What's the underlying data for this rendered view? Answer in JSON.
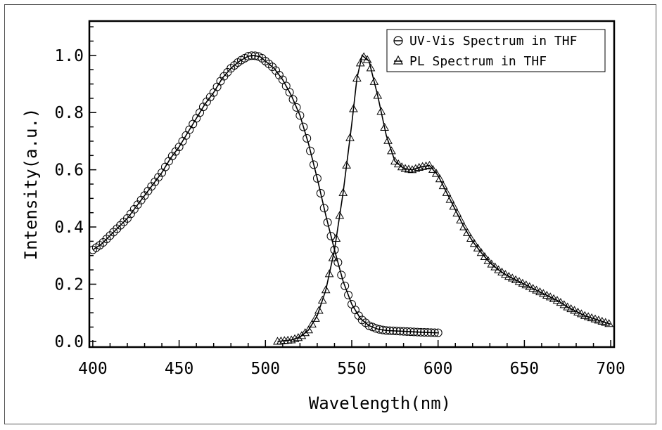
{
  "chart_data": {
    "type": "scatter",
    "xlabel": "Wavelength(nm)",
    "ylabel": "Intensity(a.u.)",
    "xlim": [
      398,
      702
    ],
    "ylim": [
      -0.02,
      1.12
    ],
    "x_ticks": [
      400,
      450,
      500,
      550,
      600,
      650,
      700
    ],
    "x_tick_labels": [
      "400",
      "450",
      "500",
      "550",
      "600",
      "650",
      "700"
    ],
    "y_ticks": [
      0.0,
      0.2,
      0.4,
      0.6,
      0.8,
      1.0
    ],
    "y_tick_labels": [
      "0.0",
      "0.2",
      "0.4",
      "0.6",
      "0.8",
      "1.0"
    ],
    "grid": false,
    "legend_position": "top-right",
    "series": [
      {
        "name": "UV-Vis Spectrum in THF",
        "marker": "circle",
        "color": "#000000",
        "points": [
          [
            400,
            0.32
          ],
          [
            405,
            0.34
          ],
          [
            410,
            0.37
          ],
          [
            415,
            0.4
          ],
          [
            420,
            0.43
          ],
          [
            425,
            0.47
          ],
          [
            430,
            0.51
          ],
          [
            435,
            0.55
          ],
          [
            440,
            0.59
          ],
          [
            445,
            0.64
          ],
          [
            450,
            0.68
          ],
          [
            455,
            0.73
          ],
          [
            460,
            0.78
          ],
          [
            465,
            0.83
          ],
          [
            470,
            0.87
          ],
          [
            475,
            0.92
          ],
          [
            480,
            0.955
          ],
          [
            485,
            0.98
          ],
          [
            490,
            0.997
          ],
          [
            493,
            1.0
          ],
          [
            497,
            0.995
          ],
          [
            500,
            0.98
          ],
          [
            505,
            0.955
          ],
          [
            510,
            0.915
          ],
          [
            515,
            0.86
          ],
          [
            520,
            0.79
          ],
          [
            525,
            0.69
          ],
          [
            530,
            0.57
          ],
          [
            535,
            0.44
          ],
          [
            540,
            0.32
          ],
          [
            545,
            0.21
          ],
          [
            550,
            0.13
          ],
          [
            555,
            0.08
          ],
          [
            560,
            0.055
          ],
          [
            565,
            0.043
          ],
          [
            570,
            0.038
          ],
          [
            580,
            0.035
          ],
          [
            590,
            0.032
          ],
          [
            600,
            0.03
          ]
        ]
      },
      {
        "name": "PL Spectrum in THF",
        "marker": "triangle",
        "color": "#000000",
        "points": [
          [
            507,
            0.0
          ],
          [
            515,
            0.005
          ],
          [
            520,
            0.015
          ],
          [
            525,
            0.04
          ],
          [
            530,
            0.09
          ],
          [
            535,
            0.18
          ],
          [
            540,
            0.32
          ],
          [
            545,
            0.52
          ],
          [
            550,
            0.76
          ],
          [
            553,
            0.92
          ],
          [
            556,
            1.0
          ],
          [
            560,
            0.98
          ],
          [
            565,
            0.86
          ],
          [
            570,
            0.72
          ],
          [
            575,
            0.63
          ],
          [
            580,
            0.605
          ],
          [
            585,
            0.6
          ],
          [
            590,
            0.61
          ],
          [
            595,
            0.615
          ],
          [
            600,
            0.58
          ],
          [
            605,
            0.52
          ],
          [
            610,
            0.46
          ],
          [
            615,
            0.4
          ],
          [
            620,
            0.35
          ],
          [
            625,
            0.31
          ],
          [
            630,
            0.275
          ],
          [
            635,
            0.25
          ],
          [
            640,
            0.23
          ],
          [
            645,
            0.215
          ],
          [
            650,
            0.2
          ],
          [
            655,
            0.185
          ],
          [
            660,
            0.17
          ],
          [
            665,
            0.155
          ],
          [
            670,
            0.14
          ],
          [
            675,
            0.12
          ],
          [
            680,
            0.105
          ],
          [
            685,
            0.09
          ],
          [
            690,
            0.08
          ],
          [
            695,
            0.07
          ],
          [
            700,
            0.06
          ]
        ]
      }
    ]
  }
}
